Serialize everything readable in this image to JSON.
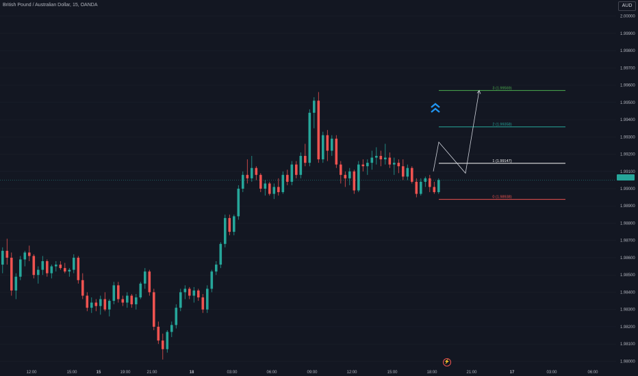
{
  "header": {
    "title": "British Pound / Australian Dollar, 15, OANDA",
    "currency": "AUD"
  },
  "current_price_label": "",
  "chart_data": {
    "type": "candlestick",
    "y_axis": {
      "ticks": [
        "2.00000",
        "1.99900",
        "1.99800",
        "1.99700",
        "1.99600",
        "1.99500",
        "1.99400",
        "1.99300",
        "1.99200",
        "1.99100",
        "1.99000",
        "1.98900",
        "1.98800",
        "1.98700",
        "1.98600",
        "1.98500",
        "1.98400",
        "1.98300",
        "1.98200",
        "1.98100",
        "1.98000"
      ],
      "range": [
        1.9797,
        2.0003
      ]
    },
    "x_axis": {
      "ticks": [
        "12:00",
        "15:00",
        "15",
        "19:00",
        "21:00",
        "18",
        "03:00",
        "06:00",
        "09:00",
        "12:00",
        "15:00",
        "18:00",
        "21:00",
        "17",
        "03:00",
        "06:00"
      ]
    },
    "candles": [
      [
        1.9856,
        1.9866,
        1.9851,
        1.9864
      ],
      [
        1.9864,
        1.9871,
        1.9856,
        1.986
      ],
      [
        1.986,
        1.9863,
        1.9838,
        1.9841
      ],
      [
        1.9841,
        1.9851,
        1.9836,
        1.9849
      ],
      [
        1.9849,
        1.9861,
        1.9847,
        1.9859
      ],
      [
        1.9859,
        1.9864,
        1.9855,
        1.9863
      ],
      [
        1.9863,
        1.9867,
        1.9858,
        1.9861
      ],
      [
        1.9861,
        1.9862,
        1.9848,
        1.985
      ],
      [
        1.985,
        1.9855,
        1.9845,
        1.9853
      ],
      [
        1.9853,
        1.9861,
        1.985,
        1.9858
      ],
      [
        1.9858,
        1.9859,
        1.9849,
        1.9851
      ],
      [
        1.9851,
        1.9856,
        1.9848,
        1.9855
      ],
      [
        1.9855,
        1.9858,
        1.9852,
        1.9856
      ],
      [
        1.9856,
        1.9858,
        1.9853,
        1.9854
      ],
      [
        1.9854,
        1.9857,
        1.9851,
        1.9852
      ],
      [
        1.9852,
        1.9854,
        1.9849,
        1.9853
      ],
      [
        1.9853,
        1.9862,
        1.9851,
        1.986
      ],
      [
        1.986,
        1.9861,
        1.9845,
        1.9847
      ],
      [
        1.9847,
        1.9851,
        1.9836,
        1.9838
      ],
      [
        1.9838,
        1.984,
        1.9829,
        1.9831
      ],
      [
        1.9831,
        1.9837,
        1.9828,
        1.9834
      ],
      [
        1.9834,
        1.9836,
        1.9829,
        1.9832
      ],
      [
        1.9832,
        1.9838,
        1.9827,
        1.9836
      ],
      [
        1.9836,
        1.984,
        1.9829,
        1.983
      ],
      [
        1.983,
        1.9836,
        1.9826,
        1.9835
      ],
      [
        1.9835,
        1.9846,
        1.9833,
        1.9844
      ],
      [
        1.9844,
        1.9846,
        1.9834,
        1.9836
      ],
      [
        1.9836,
        1.9838,
        1.9832,
        1.9834
      ],
      [
        1.9834,
        1.984,
        1.9831,
        1.9838
      ],
      [
        1.9838,
        1.9839,
        1.9831,
        1.9833
      ],
      [
        1.9833,
        1.9839,
        1.983,
        1.9837
      ],
      [
        1.9837,
        1.9846,
        1.9836,
        1.9845
      ],
      [
        1.9845,
        1.9854,
        1.9842,
        1.9852
      ],
      [
        1.9852,
        1.9853,
        1.9838,
        1.984
      ],
      [
        1.984,
        1.9842,
        1.9818,
        1.982
      ],
      [
        1.982,
        1.9823,
        1.981,
        1.9812
      ],
      [
        1.9812,
        1.9816,
        1.9801,
        1.9807
      ],
      [
        1.9807,
        1.9818,
        1.9805,
        1.9817
      ],
      [
        1.9817,
        1.9823,
        1.9814,
        1.9821
      ],
      [
        1.9821,
        1.9833,
        1.9819,
        1.9831
      ],
      [
        1.9831,
        1.9842,
        1.9829,
        1.984
      ],
      [
        1.984,
        1.9844,
        1.9836,
        1.9842
      ],
      [
        1.9842,
        1.9843,
        1.9836,
        1.9838
      ],
      [
        1.9838,
        1.9843,
        1.9834,
        1.9841
      ],
      [
        1.9841,
        1.9842,
        1.9835,
        1.9837
      ],
      [
        1.9837,
        1.9839,
        1.9828,
        1.983
      ],
      [
        1.983,
        1.9844,
        1.9828,
        1.9842
      ],
      [
        1.9842,
        1.9853,
        1.984,
        1.9852
      ],
      [
        1.9852,
        1.9858,
        1.985,
        1.9856
      ],
      [
        1.9856,
        1.9869,
        1.9854,
        1.9868
      ],
      [
        1.9868,
        1.9885,
        1.9866,
        1.9883
      ],
      [
        1.9883,
        1.9885,
        1.9873,
        1.9875
      ],
      [
        1.9875,
        1.9885,
        1.9873,
        1.9884
      ],
      [
        1.9884,
        1.9902,
        1.9882,
        1.99
      ],
      [
        1.99,
        1.991,
        1.9898,
        1.9908
      ],
      [
        1.9908,
        1.9917,
        1.9903,
        1.9906
      ],
      [
        1.9906,
        1.9919,
        1.9904,
        1.9912
      ],
      [
        1.9912,
        1.9913,
        1.9905,
        1.9908
      ],
      [
        1.9908,
        1.9909,
        1.9898,
        1.99
      ],
      [
        1.99,
        1.9905,
        1.9896,
        1.9903
      ],
      [
        1.9903,
        1.9904,
        1.9896,
        1.9897
      ],
      [
        1.9897,
        1.9903,
        1.9894,
        1.9901
      ],
      [
        1.9901,
        1.9906,
        1.9896,
        1.9898
      ],
      [
        1.9898,
        1.991,
        1.9897,
        1.9908
      ],
      [
        1.9908,
        1.9911,
        1.9902,
        1.9904
      ],
      [
        1.9904,
        1.9916,
        1.9902,
        1.9914
      ],
      [
        1.9914,
        1.9916,
        1.9906,
        1.9908
      ],
      [
        1.9908,
        1.9921,
        1.9906,
        1.9919
      ],
      [
        1.9919,
        1.9926,
        1.9913,
        1.9915
      ],
      [
        1.9915,
        1.9946,
        1.9913,
        1.9944
      ],
      [
        1.9944,
        1.9953,
        1.9935,
        1.9951
      ],
      [
        1.9951,
        1.9956,
        1.9915,
        1.9917
      ],
      [
        1.9917,
        1.9933,
        1.9915,
        1.9931
      ],
      [
        1.9931,
        1.9934,
        1.9916,
        1.9922
      ],
      [
        1.9922,
        1.9931,
        1.9919,
        1.9929
      ],
      [
        1.9929,
        1.9931,
        1.9912,
        1.9914
      ],
      [
        1.9914,
        1.9916,
        1.9903,
        1.9908
      ],
      [
        1.9908,
        1.991,
        1.9901,
        1.9906
      ],
      [
        1.9906,
        1.9912,
        1.9902,
        1.991
      ],
      [
        1.991,
        1.9911,
        1.9897,
        1.9899
      ],
      [
        1.9899,
        1.9916,
        1.9898,
        1.9914
      ],
      [
        1.9914,
        1.9917,
        1.991,
        1.9913
      ],
      [
        1.9913,
        1.9917,
        1.9908,
        1.9915
      ],
      [
        1.9915,
        1.9922,
        1.9911,
        1.9918
      ],
      [
        1.9918,
        1.9924,
        1.9914,
        1.9919
      ],
      [
        1.9919,
        1.9922,
        1.9913,
        1.9917
      ],
      [
        1.9917,
        1.9926,
        1.9914,
        1.9918
      ],
      [
        1.9918,
        1.9921,
        1.9912,
        1.9914
      ],
      [
        1.9914,
        1.9918,
        1.9908,
        1.9915
      ],
      [
        1.9915,
        1.9917,
        1.9909,
        1.9913
      ],
      [
        1.9913,
        1.9917,
        1.9905,
        1.9907
      ],
      [
        1.9907,
        1.9914,
        1.9905,
        1.9912
      ],
      [
        1.9912,
        1.9913,
        1.9903,
        1.9904
      ],
      [
        1.9904,
        1.9906,
        1.9895,
        1.9897
      ],
      [
        1.9897,
        1.9906,
        1.9896,
        1.9904
      ],
      [
        1.9904,
        1.9907,
        1.9901,
        1.9906
      ],
      [
        1.9906,
        1.9908,
        1.9898,
        1.9901
      ],
      [
        1.9901,
        1.9904,
        1.9897,
        1.9898
      ],
      [
        1.9898,
        1.9906,
        1.9897,
        1.9905
      ]
    ],
    "current_price": 1.9905,
    "projection": {
      "levels": [
        {
          "label": "3 (1.99569)",
          "value": 1.99569,
          "color": "#4caf50"
        },
        {
          "label": "2 (1.99358)",
          "value": 1.99358,
          "color": "#26a69a"
        },
        {
          "label": "1 (1.99147)",
          "value": 1.99147,
          "color": "#ffffff"
        },
        {
          "label": "0 (1.98938)",
          "value": 1.98938,
          "color": "#ef5350"
        }
      ],
      "path_color": "#d1d4dc",
      "accent_icon": "double-chevron-up-icon",
      "accent_color": "#2196f3"
    },
    "colors": {
      "up": "#26a69a",
      "down": "#ef5350",
      "background": "#131722",
      "grid": "#1e222d",
      "axis_text": "#b2b5be"
    }
  }
}
